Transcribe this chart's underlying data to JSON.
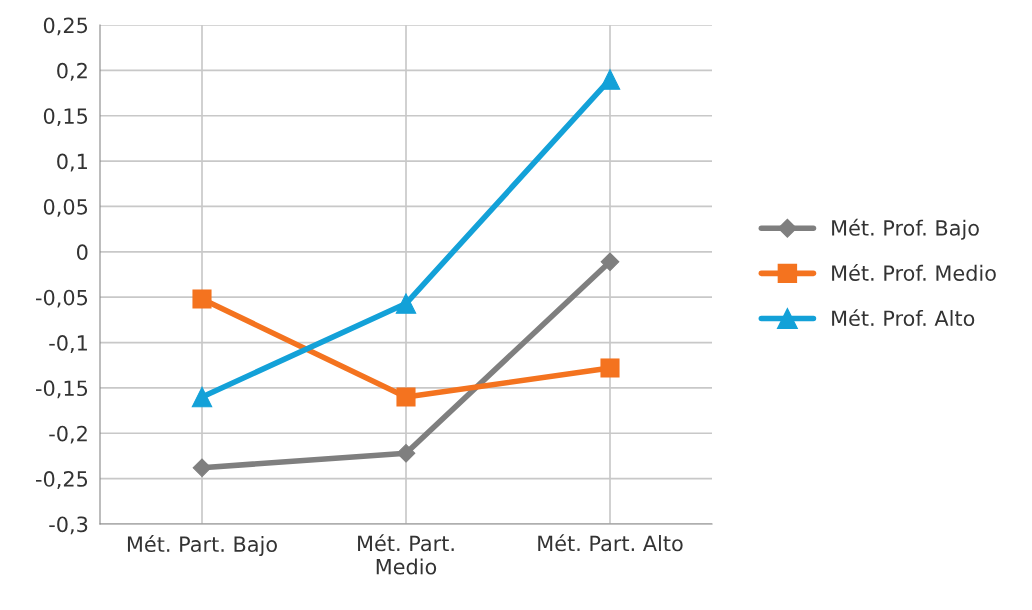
{
  "chart_data": {
    "type": "line",
    "categories": [
      "Mét. Part. Bajo",
      "Mét. Part. Medio",
      "Mét. Part. Alto"
    ],
    "series": [
      {
        "name": "Mét. Prof. Bajo",
        "color": "#7f7f7f",
        "marker": "diamond",
        "values": [
          -0.238,
          -0.222,
          -0.011
        ]
      },
      {
        "name": "Mét. Prof. Medio",
        "color": "#f4731f",
        "marker": "square",
        "values": [
          -0.052,
          -0.16,
          -0.128
        ]
      },
      {
        "name": "Mét. Prof. Alto",
        "color": "#13a1d8",
        "marker": "triangle",
        "values": [
          -0.16,
          -0.057,
          0.19
        ]
      }
    ],
    "ylim": [
      -0.3,
      0.25
    ],
    "yticks": [
      {
        "value": -0.3,
        "label": "-0,3"
      },
      {
        "value": -0.25,
        "label": "-0,25"
      },
      {
        "value": -0.2,
        "label": "-0,2"
      },
      {
        "value": -0.15,
        "label": "-0,15"
      },
      {
        "value": -0.1,
        "label": "-0,1"
      },
      {
        "value": -0.05,
        "label": "-0,05"
      },
      {
        "value": 0,
        "label": "0"
      },
      {
        "value": 0.05,
        "label": "0,05"
      },
      {
        "value": 0.1,
        "label": "0,1"
      },
      {
        "value": 0.15,
        "label": "0,15"
      },
      {
        "value": 0.2,
        "label": "0,2"
      },
      {
        "value": 0.25,
        "label": "0,25"
      }
    ],
    "grid": true,
    "legend": "right",
    "line_style": "solid"
  }
}
